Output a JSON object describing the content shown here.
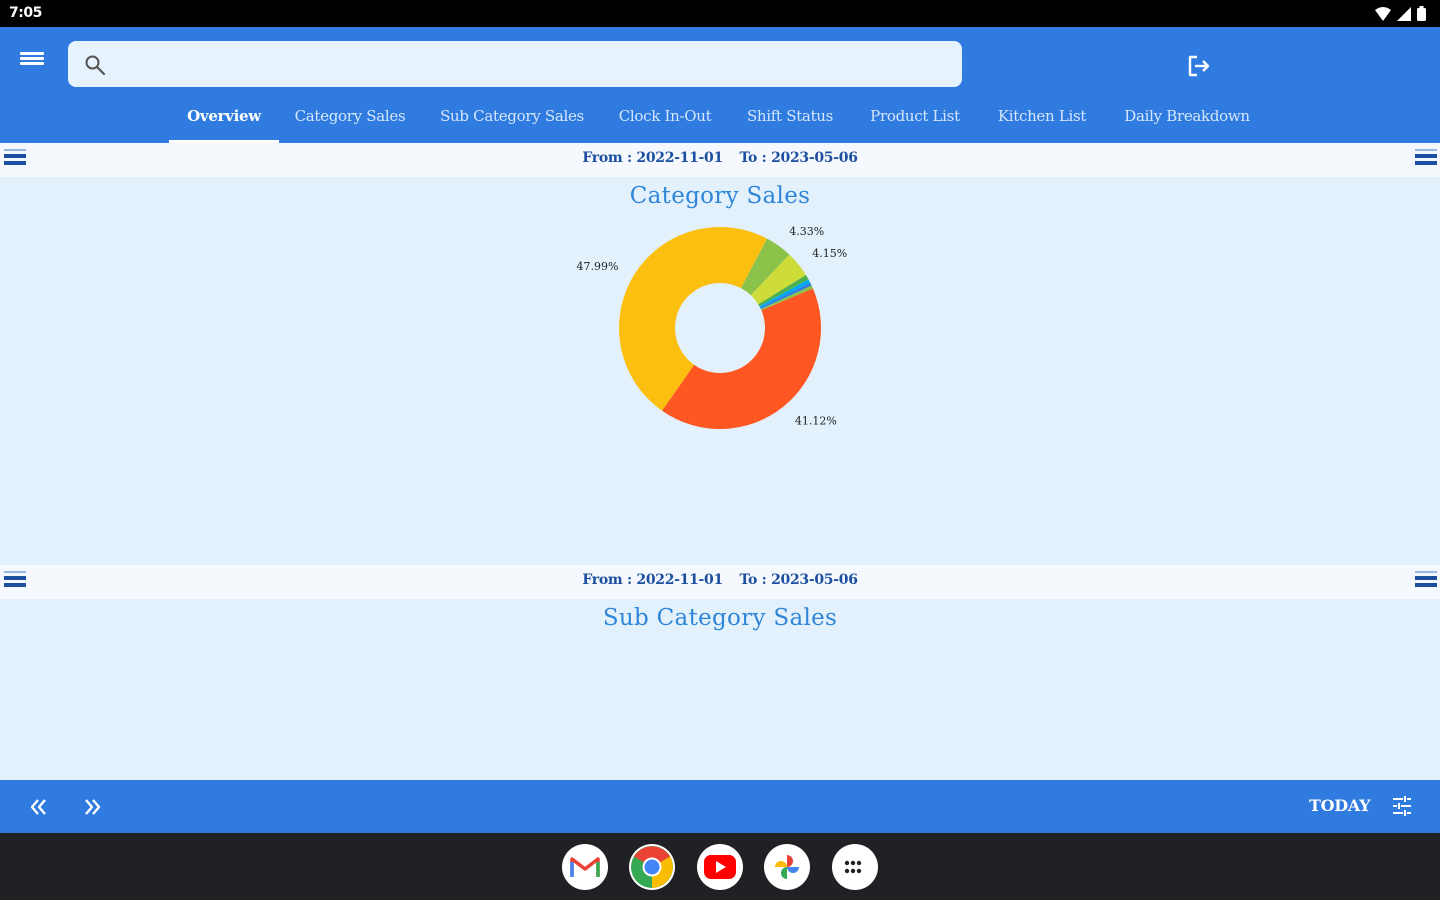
{
  "status_bar": {
    "time": "7:05"
  },
  "search": {
    "placeholder": "",
    "value": ""
  },
  "tabs": [
    {
      "label": "Overview",
      "active": true
    },
    {
      "label": "Category Sales"
    },
    {
      "label": "Sub Category Sales"
    },
    {
      "label": "Clock In-Out"
    },
    {
      "label": "Shift Status"
    },
    {
      "label": "Product List"
    },
    {
      "label": "Kitchen List"
    },
    {
      "label": "Daily Breakdown"
    }
  ],
  "panels": [
    {
      "from_label": "From : 2022-11-01",
      "to_label": "To : 2023-05-06",
      "title": "Category Sales"
    },
    {
      "from_label": "From : 2022-11-01",
      "to_label": "To : 2023-05-06",
      "title": "Sub Category Sales"
    }
  ],
  "bottom_bar": {
    "today_label": "TODAY"
  },
  "icons": {
    "menu": "menu-icon",
    "search": "search-icon",
    "logout": "logout-icon",
    "prev": "double-chevron-left-icon",
    "next": "double-chevron-right-icon",
    "tune": "tune-icon"
  },
  "colors": {
    "primary": "#2f7be0",
    "panel_bg": "#e3f1fd",
    "title": "#2f86d8",
    "range_text": "#1c4fa0"
  },
  "dock_apps": [
    "gmail",
    "chrome",
    "youtube",
    "photos",
    "apps"
  ],
  "chart_data": {
    "type": "pie",
    "donut": true,
    "title": "Category Sales",
    "slices": [
      {
        "label": "47.99%",
        "value": 47.99,
        "color": "#fdbf0f"
      },
      {
        "label": "4.33%",
        "value": 4.33,
        "color": "#8bc34a"
      },
      {
        "label": "4.15%",
        "value": 4.15,
        "color": "#cddc39"
      },
      {
        "label": "",
        "value": 0.8,
        "color": "#4caf50"
      },
      {
        "label": "",
        "value": 0.6,
        "color": "#03a9f4"
      },
      {
        "label": "",
        "value": 0.5,
        "color": "#2f7be0"
      },
      {
        "label": "",
        "value": 0.5,
        "color": "#8bc34a"
      },
      {
        "label": "41.12%",
        "value": 41.12,
        "color": "#ff5722"
      }
    ]
  }
}
